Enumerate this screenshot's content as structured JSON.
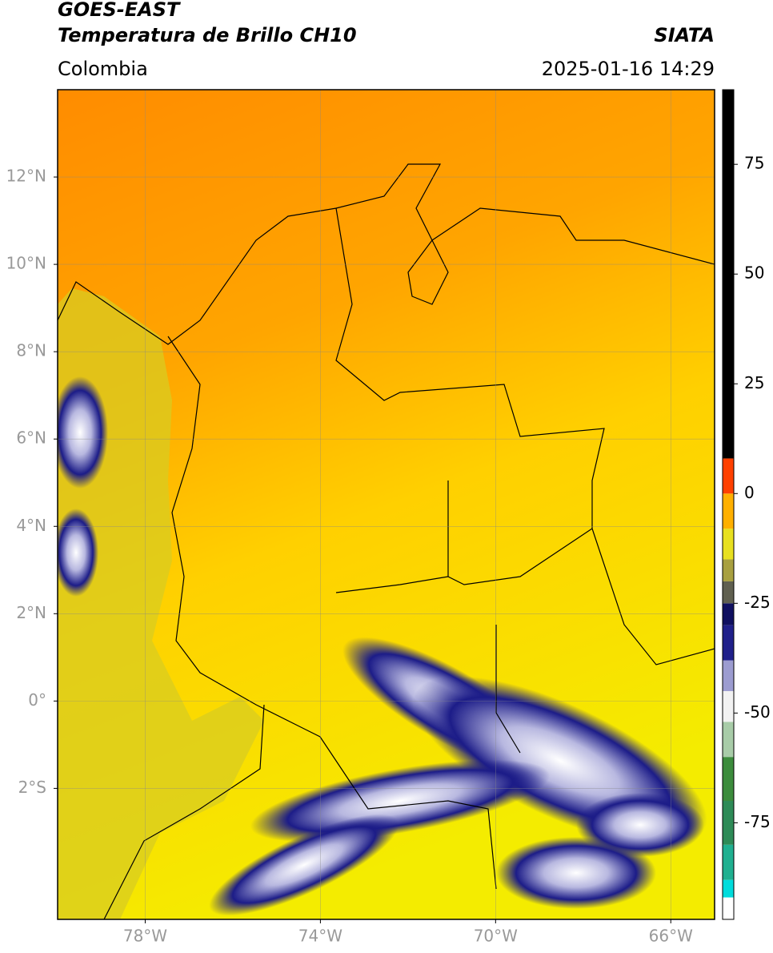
{
  "header": {
    "satellite": "GOES-EAST",
    "product": "Temperatura de Brillo CH10",
    "source": "SIATA",
    "region": "Colombia",
    "datetime": "2025-01-16 14:29"
  },
  "map": {
    "xlim": [
      -80,
      -65
    ],
    "ylim": [
      -5,
      14
    ],
    "xticks": [
      {
        "value": -78,
        "label": "78°W"
      },
      {
        "value": -74,
        "label": "74°W"
      },
      {
        "value": -70,
        "label": "70°W"
      },
      {
        "value": -66,
        "label": "66°W"
      }
    ],
    "yticks": [
      {
        "value": 12,
        "label": "12°N"
      },
      {
        "value": 10,
        "label": "10°N"
      },
      {
        "value": 8,
        "label": "8°N"
      },
      {
        "value": 6,
        "label": "6°N"
      },
      {
        "value": 4,
        "label": "4°N"
      },
      {
        "value": 2,
        "label": "2°N"
      },
      {
        "value": 0,
        "label": "0°"
      },
      {
        "value": -2,
        "label": "2°S"
      }
    ],
    "grid": true
  },
  "colorbar": {
    "lim": [
      -97,
      92
    ],
    "ticks": [
      75,
      50,
      25,
      0,
      -25,
      -50,
      -75
    ],
    "segments": [
      {
        "from": -97,
        "to": -92,
        "color": "#ffffff"
      },
      {
        "from": -92,
        "to": -88,
        "color": "#00dcdc"
      },
      {
        "from": -88,
        "to": -80,
        "color": "#20b090"
      },
      {
        "from": -80,
        "to": -70,
        "color": "#2e8b57"
      },
      {
        "from": -70,
        "to": -60,
        "color": "#3c8c3c"
      },
      {
        "from": -60,
        "to": -52,
        "color": "#a8cca8"
      },
      {
        "from": -52,
        "to": -45,
        "color": "#f2f2f2"
      },
      {
        "from": -45,
        "to": -38,
        "color": "#9c9cd0"
      },
      {
        "from": -38,
        "to": -30,
        "color": "#20208a"
      },
      {
        "from": -30,
        "to": -25,
        "color": "#101060"
      },
      {
        "from": -25,
        "to": -20,
        "color": "#606050"
      },
      {
        "from": -20,
        "to": -15,
        "color": "#a8a040"
      },
      {
        "from": -15,
        "to": -8,
        "color": "#e8e020"
      },
      {
        "from": -8,
        "to": 0,
        "color": "#ffb000"
      },
      {
        "from": 0,
        "to": 8,
        "color": "#ff4000"
      },
      {
        "from": 8,
        "to": 92,
        "color": "#000000"
      }
    ]
  }
}
